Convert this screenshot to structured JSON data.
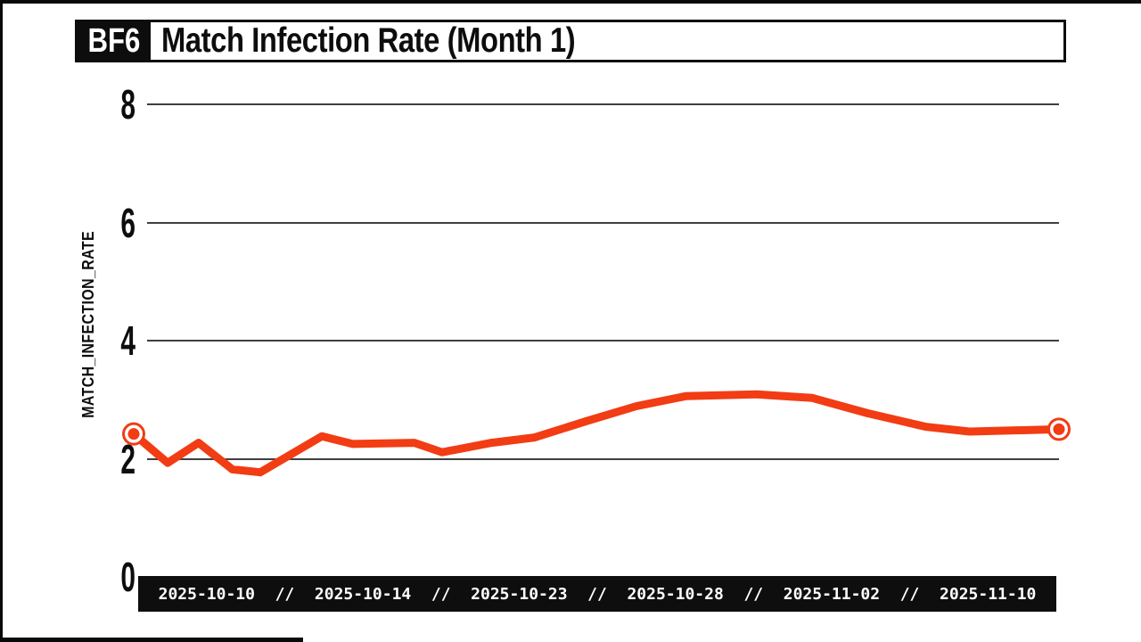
{
  "chart_data": {
    "type": "line",
    "badge": "BF6",
    "title": "Match Infection Rate (Month 1)",
    "ylabel": "MATCH_INFECTION_RATE",
    "ylim": [
      0,
      8
    ],
    "xlim": [
      0,
      30
    ],
    "yticks": [
      0,
      2,
      4,
      6,
      8
    ],
    "x_tick_labels": [
      "2025-10-10",
      "2025-10-14",
      "2025-10-23",
      "2025-10-28",
      "2025-11-02",
      "2025-11-10"
    ],
    "x_separator": "//",
    "grid": true,
    "legend": "none",
    "endpoint_markers": true,
    "colors": {
      "line": "#F23C14",
      "grid": "#3F3F3F",
      "axis_text": "#0D0D0D",
      "xbar_background": "#0E0E0E",
      "xbar_text": "#FFFFFF",
      "background": "#FFFFFF"
    },
    "series": [
      {
        "name": "MATCH_INFECTION_RATE",
        "points": [
          {
            "x": 0.0,
            "y": 2.42
          },
          {
            "x": 1.1,
            "y": 1.93
          },
          {
            "x": 2.1,
            "y": 2.27
          },
          {
            "x": 3.2,
            "y": 1.82
          },
          {
            "x": 4.1,
            "y": 1.77
          },
          {
            "x": 6.1,
            "y": 2.38
          },
          {
            "x": 7.1,
            "y": 2.25
          },
          {
            "x": 9.1,
            "y": 2.27
          },
          {
            "x": 10.0,
            "y": 2.11
          },
          {
            "x": 11.6,
            "y": 2.27
          },
          {
            "x": 13.0,
            "y": 2.36
          },
          {
            "x": 14.7,
            "y": 2.64
          },
          {
            "x": 16.3,
            "y": 2.89
          },
          {
            "x": 17.9,
            "y": 3.06
          },
          {
            "x": 20.2,
            "y": 3.09
          },
          {
            "x": 22.0,
            "y": 3.03
          },
          {
            "x": 23.8,
            "y": 2.77
          },
          {
            "x": 25.7,
            "y": 2.54
          },
          {
            "x": 27.1,
            "y": 2.46
          },
          {
            "x": 30.0,
            "y": 2.5
          }
        ]
      }
    ]
  }
}
